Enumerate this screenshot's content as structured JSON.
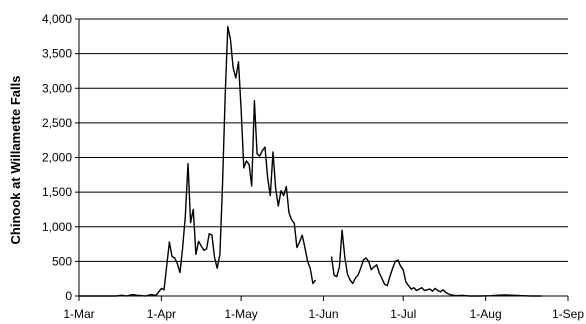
{
  "chart_data": {
    "type": "line",
    "title": "",
    "xlabel": "",
    "ylabel": "Chinook at Willamette Falls",
    "x_ticks": [
      "1-Mar",
      "1-Apr",
      "1-May",
      "1-Jun",
      "1-Jul",
      "1-Aug",
      "1-Sep"
    ],
    "y_ticks": [
      "0",
      "500",
      "1,000",
      "1,500",
      "2,000",
      "2,500",
      "3,000",
      "3,500",
      "4,000"
    ],
    "xlim": [
      "2000-03-01",
      "2000-09-01"
    ],
    "ylim": [
      0,
      4000
    ],
    "grid": "horizontal",
    "legend": "none",
    "line_color": "#000000",
    "series": [
      {
        "segments": [
          [
            [
              "2000-03-01",
              0
            ],
            [
              "2000-03-05",
              0
            ],
            [
              "2000-03-10",
              0
            ],
            [
              "2000-03-15",
              0
            ],
            [
              "2000-03-17",
              10
            ],
            [
              "2000-03-19",
              0
            ],
            [
              "2000-03-21",
              20
            ],
            [
              "2000-03-23",
              10
            ],
            [
              "2000-03-26",
              0
            ],
            [
              "2000-03-28",
              20
            ],
            [
              "2000-03-30",
              10
            ],
            [
              "2000-04-01",
              110
            ],
            [
              "2000-04-02",
              90
            ],
            [
              "2000-04-04",
              780
            ],
            [
              "2000-04-05",
              570
            ],
            [
              "2000-04-06",
              550
            ],
            [
              "2000-04-07",
              470
            ],
            [
              "2000-04-08",
              340
            ],
            [
              "2000-04-09",
              690
            ],
            [
              "2000-04-10",
              1150
            ],
            [
              "2000-04-11",
              1910
            ],
            [
              "2000-04-12",
              1060
            ],
            [
              "2000-04-13",
              1250
            ],
            [
              "2000-04-14",
              600
            ],
            [
              "2000-04-15",
              790
            ],
            [
              "2000-04-16",
              720
            ],
            [
              "2000-04-17",
              660
            ],
            [
              "2000-04-18",
              680
            ],
            [
              "2000-04-19",
              900
            ],
            [
              "2000-04-20",
              880
            ],
            [
              "2000-04-21",
              560
            ],
            [
              "2000-04-22",
              400
            ],
            [
              "2000-04-23",
              600
            ],
            [
              "2000-04-24",
              1600
            ],
            [
              "2000-04-25",
              2900
            ],
            [
              "2000-04-26",
              3890
            ],
            [
              "2000-04-27",
              3700
            ],
            [
              "2000-04-28",
              3300
            ],
            [
              "2000-04-29",
              3150
            ],
            [
              "2000-04-30",
              3380
            ],
            [
              "2000-05-01",
              2700
            ],
            [
              "2000-05-02",
              1850
            ],
            [
              "2000-05-03",
              1950
            ],
            [
              "2000-05-04",
              1900
            ],
            [
              "2000-05-05",
              1590
            ],
            [
              "2000-05-06",
              2820
            ],
            [
              "2000-05-07",
              2050
            ],
            [
              "2000-05-08",
              2020
            ],
            [
              "2000-05-09",
              2100
            ],
            [
              "2000-05-10",
              2150
            ],
            [
              "2000-05-11",
              1700
            ],
            [
              "2000-05-12",
              1450
            ],
            [
              "2000-05-13",
              2080
            ],
            [
              "2000-05-14",
              1550
            ],
            [
              "2000-05-15",
              1300
            ],
            [
              "2000-05-16",
              1520
            ],
            [
              "2000-05-17",
              1450
            ],
            [
              "2000-05-18",
              1580
            ],
            [
              "2000-05-19",
              1200
            ],
            [
              "2000-05-20",
              1100
            ],
            [
              "2000-05-21",
              1050
            ],
            [
              "2000-05-22",
              700
            ],
            [
              "2000-05-23",
              780
            ],
            [
              "2000-05-24",
              880
            ],
            [
              "2000-05-25",
              700
            ],
            [
              "2000-05-26",
              500
            ],
            [
              "2000-05-27",
              400
            ],
            [
              "2000-05-28",
              180
            ],
            [
              "2000-05-29",
              230
            ]
          ],
          [
            [
              "2000-06-04",
              570
            ],
            [
              "2000-06-05",
              300
            ],
            [
              "2000-06-06",
              280
            ],
            [
              "2000-06-07",
              420
            ],
            [
              "2000-06-08",
              950
            ],
            [
              "2000-06-09",
              560
            ],
            [
              "2000-06-10",
              320
            ],
            [
              "2000-06-11",
              230
            ],
            [
              "2000-06-12",
              180
            ],
            [
              "2000-06-13",
              260
            ],
            [
              "2000-06-14",
              300
            ],
            [
              "2000-06-15",
              400
            ],
            [
              "2000-06-16",
              520
            ],
            [
              "2000-06-17",
              550
            ],
            [
              "2000-06-18",
              500
            ],
            [
              "2000-06-19",
              380
            ],
            [
              "2000-06-20",
              420
            ],
            [
              "2000-06-21",
              450
            ],
            [
              "2000-06-22",
              330
            ],
            [
              "2000-06-23",
              250
            ],
            [
              "2000-06-24",
              170
            ],
            [
              "2000-06-25",
              150
            ],
            [
              "2000-06-26",
              280
            ],
            [
              "2000-06-27",
              400
            ],
            [
              "2000-06-28",
              500
            ],
            [
              "2000-06-29",
              520
            ],
            [
              "2000-06-30",
              430
            ],
            [
              "2000-07-01",
              380
            ],
            [
              "2000-07-02",
              200
            ],
            [
              "2000-07-03",
              150
            ],
            [
              "2000-07-04",
              100
            ],
            [
              "2000-07-05",
              120
            ],
            [
              "2000-07-06",
              80
            ],
            [
              "2000-07-07",
              100
            ],
            [
              "2000-07-08",
              120
            ],
            [
              "2000-07-09",
              80
            ],
            [
              "2000-07-10",
              90
            ],
            [
              "2000-07-11",
              100
            ],
            [
              "2000-07-12",
              70
            ],
            [
              "2000-07-13",
              110
            ],
            [
              "2000-07-14",
              80
            ],
            [
              "2000-07-15",
              60
            ],
            [
              "2000-07-16",
              90
            ],
            [
              "2000-07-17",
              50
            ],
            [
              "2000-07-18",
              30
            ],
            [
              "2000-07-19",
              15
            ],
            [
              "2000-07-21",
              5
            ],
            [
              "2000-07-23",
              10
            ],
            [
              "2000-07-26",
              0
            ],
            [
              "2000-07-30",
              0
            ],
            [
              "2000-08-03",
              5
            ],
            [
              "2000-08-05",
              10
            ],
            [
              "2000-08-08",
              15
            ],
            [
              "2000-08-12",
              10
            ],
            [
              "2000-08-15",
              5
            ],
            [
              "2000-08-18",
              0
            ],
            [
              "2000-08-22",
              0
            ]
          ]
        ]
      }
    ]
  }
}
